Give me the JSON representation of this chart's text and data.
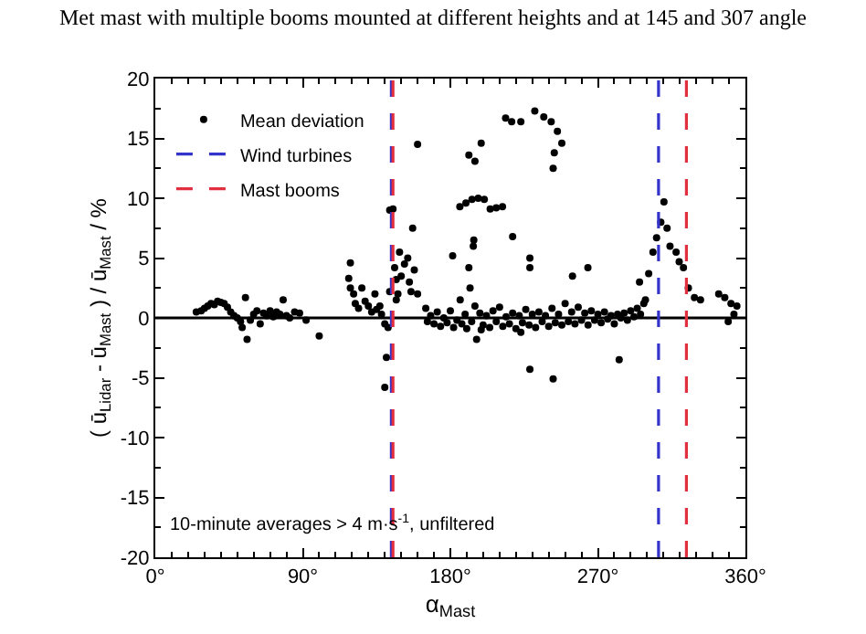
{
  "chart_data": {
    "type": "scatter",
    "title": "Met mast with multiple booms mounted at different heights and at 145 and 307 angle",
    "xlabel": "α$_{Mast}$",
    "ylabel": "( ū$_{Lidar}$ - ū$_{Mast}$ ) / ū$_{Mast}$ / %",
    "xlim": [
      0,
      360
    ],
    "xticks": [
      {
        "value": 0,
        "label": "0°"
      },
      {
        "value": 90,
        "label": "90°"
      },
      {
        "value": 180,
        "label": "180°"
      },
      {
        "value": 270,
        "label": "270°"
      },
      {
        "value": 360,
        "label": "360°"
      }
    ],
    "ylim": [
      -20,
      20
    ],
    "yticks": [
      -20,
      -15,
      -10,
      -5,
      0,
      5,
      10,
      15,
      20
    ],
    "legend": "top left",
    "marker": "circle",
    "annotations": [
      "10-minute averages > 4 m·s$^{-1}$, unfiltered"
    ],
    "ref_lines": [
      {
        "axis": "y",
        "value": 0,
        "color": "#000000",
        "line_style": "solid"
      },
      {
        "axis": "x",
        "value": 144,
        "label": "Wind turbines",
        "color": "#3333cc",
        "line_style": "dashed"
      },
      {
        "axis": "x",
        "value": 307,
        "color": "#3333cc",
        "line_style": "dashed"
      },
      {
        "axis": "x",
        "value": 145,
        "label": "Mast booms",
        "color": "#e03040",
        "line_style": "dashed"
      },
      {
        "axis": "x",
        "value": 324,
        "color": "#e03040",
        "line_style": "dashed"
      }
    ],
    "series": [
      {
        "name": "Mean deviation",
        "color": "#000000",
        "x": [
          25,
          28,
          30,
          32,
          34,
          36,
          38,
          40,
          42,
          44,
          46,
          48,
          50,
          52,
          53,
          55,
          56,
          58,
          60,
          62,
          64,
          66,
          68,
          70,
          72,
          74,
          76,
          78,
          80,
          82,
          85,
          88,
          92,
          100,
          118,
          119,
          119,
          121,
          122,
          124,
          126,
          128,
          130,
          132,
          134,
          135,
          137,
          138,
          140,
          141,
          140,
          142,
          143,
          143,
          145,
          146,
          147,
          148,
          147,
          149,
          150,
          152,
          154,
          155,
          156,
          157,
          158,
          160,
          160,
          165,
          166,
          168,
          170,
          172,
          174,
          176,
          178,
          180,
          182,
          184,
          186,
          187,
          189,
          190,
          192,
          193,
          195,
          196,
          198,
          200,
          202,
          204,
          206,
          208,
          210,
          212,
          214,
          216,
          218,
          220,
          222,
          224,
          226,
          228,
          230,
          232,
          234,
          236,
          238,
          240,
          242,
          244,
          246,
          248,
          250,
          252,
          254,
          256,
          258,
          260,
          262,
          264,
          266,
          268,
          270,
          272,
          274,
          276,
          278,
          280,
          282,
          284,
          286,
          288,
          290,
          292,
          294,
          296,
          298,
          213.7,
          217.4,
          223,
          231.5,
          237,
          241.5,
          245.3,
          248,
          243.4,
          242.7,
          191.3,
          195,
          198.8,
          185.8,
          189.5,
          193.2,
          197,
          200.7,
          204.3,
          208,
          211.8,
          194.3,
          194,
          218,
          228.5,
          181.4,
          191.3,
          263.9,
          254.5,
          228.5,
          228.5,
          242.7,
          283,
          223,
          198.8,
          295.4,
          299,
          301,
          303.6,
          305.8,
          308.4,
          310.3,
          312.2,
          314,
          317.7,
          319.6,
          322.2,
          325.2,
          328.9,
          332.6,
          343.7,
          347.4,
          351.2,
          354.8,
          353,
          349.5
        ],
        "values": [
          0.5,
          0.6,
          0.8,
          1.0,
          1.2,
          1.1,
          1.4,
          1.3,
          1.2,
          0.9,
          0.5,
          0.2,
          0.0,
          -0.3,
          -0.8,
          1.7,
          -1.8,
          -0.2,
          0.3,
          0.6,
          -0.5,
          0.4,
          0.2,
          0.6,
          0.1,
          0.5,
          0.3,
          1.5,
          0.2,
          0.0,
          0.5,
          0.4,
          -0.2,
          -1.5,
          3.3,
          4.6,
          2.5,
          2.0,
          1.2,
          0.8,
          2.5,
          1.4,
          1.0,
          0.5,
          2.0,
          0.7,
          1.0,
          0.3,
          -0.5,
          -3.3,
          -5.8,
          -0.8,
          2.2,
          9.0,
          9.1,
          4.2,
          3.2,
          2.0,
          1.5,
          5.5,
          3.5,
          4.5,
          5.0,
          3.0,
          2.2,
          7.5,
          4.0,
          2.0,
          14.5,
          0.8,
          -0.3,
          0.2,
          -0.5,
          0.5,
          -0.7,
          0.0,
          -0.4,
          0.6,
          -0.8,
          -0.2,
          1.5,
          -0.5,
          0.3,
          -0.9,
          2.5,
          -0.3,
          1.0,
          -1.8,
          0.4,
          -0.6,
          0.2,
          -0.8,
          0.6,
          -0.3,
          0.9,
          -0.7,
          0.1,
          -0.5,
          0.4,
          -0.9,
          0.2,
          -0.4,
          0.7,
          -0.6,
          0.3,
          -0.8,
          0.5,
          -0.3,
          0.2,
          -0.7,
          0.8,
          -0.4,
          0.3,
          -0.6,
          1.2,
          -0.3,
          0.5,
          -0.5,
          0.9,
          -0.2,
          0.4,
          -0.6,
          0.6,
          -0.2,
          0.3,
          -0.4,
          0.5,
          -0.1,
          0.2,
          -0.5,
          0.3,
          0.0,
          0.4,
          -0.2,
          0.6,
          0.1,
          0.8,
          0.3,
          1.2,
          16.7,
          16.4,
          16.4,
          17.3,
          16.8,
          16.4,
          15.6,
          14.6,
          13.8,
          12.5,
          13.6,
          13.1,
          14.6,
          9.3,
          9.6,
          9.9,
          10.0,
          9.9,
          9.1,
          9.2,
          9.3,
          6.5,
          6.0,
          6.8,
          5.0,
          5.2,
          4.2,
          4.2,
          3.5,
          4.2,
          -4.3,
          -5.1,
          -3.5,
          -1.2,
          -1.0,
          3.0,
          1.5,
          3.7,
          5.5,
          6.7,
          8.0,
          9.7,
          7.5,
          6.0,
          5.5,
          4.7,
          4.2,
          2.5,
          1.7,
          1.5,
          2.0,
          1.7,
          1.2,
          1.0,
          0.3,
          -0.3
        ]
      }
    ]
  }
}
